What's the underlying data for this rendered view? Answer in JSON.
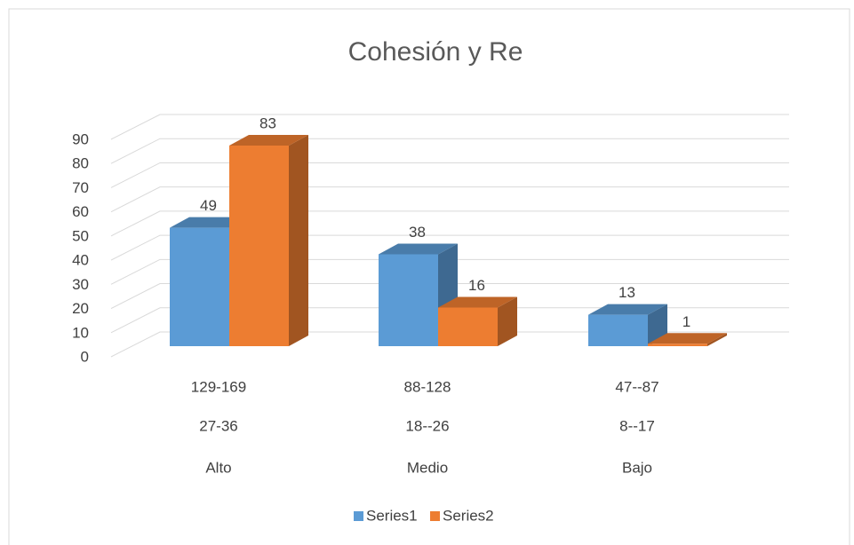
{
  "chart_data": {
    "type": "bar3d",
    "title": "Cohesión y Re",
    "category_levels": [
      [
        "129-169",
        "88-128",
        "47--87"
      ],
      [
        "27-36",
        "18--26",
        "8--17"
      ],
      [
        "Alto",
        "Medio",
        "Bajo"
      ]
    ],
    "series": [
      {
        "name": "Series1",
        "color": "#5b9bd5",
        "values": [
          49,
          38,
          13
        ]
      },
      {
        "name": "Series2",
        "color": "#ed7d31",
        "values": [
          83,
          16,
          1
        ]
      }
    ],
    "ylim": [
      0,
      90
    ],
    "yticks": [
      0,
      10,
      20,
      30,
      40,
      50,
      60,
      70,
      80,
      90
    ],
    "grid": true,
    "legend": "bottom"
  }
}
